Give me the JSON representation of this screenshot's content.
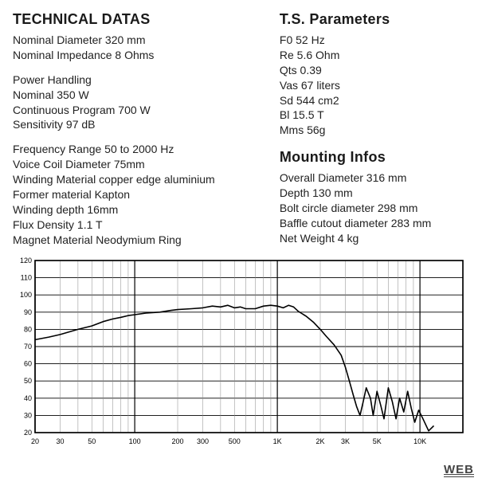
{
  "technical": {
    "heading": "TECHNICAL DATAS",
    "group1": [
      "Nominal Diameter 320 mm",
      "Nominal Impedance  8 Ohms"
    ],
    "group2": [
      "Power Handling",
      "Nominal 350 W",
      "Continuous Program 700 W",
      "Sensitivity 97 dB"
    ],
    "group3": [
      "Frequency Range 50 to 2000 Hz",
      "Voice Coil Diameter  75mm",
      "Winding Material copper edge aluminium",
      "Former material  Kapton",
      "Winding depth  16mm",
      "Flux Density  1.1 T",
      "Magnet Material  Neodymium Ring"
    ]
  },
  "ts": {
    "heading": "T.S. Parameters",
    "lines": [
      "F0 52 Hz",
      "Re 5.6 Ohm",
      "Qts 0.39",
      "Vas 67 liters",
      "Sd 544 cm2",
      "Bl 15.5 T",
      "Mms 56g"
    ]
  },
  "mounting": {
    "heading": "Mounting Infos",
    "lines": [
      "Overall Diameter  316 mm",
      "Depth 130 mm",
      "Bolt circle diameter 298 mm",
      "Baffle cutout diameter 283 mm",
      "Net Weight 4 kg"
    ]
  },
  "watermark": "WEB",
  "chart": {
    "type": "line",
    "background_color": "#ffffff",
    "grid_major_color": "#000000",
    "grid_minor_color": "#888888",
    "line_color": "#000000",
    "line_width": 1.6,
    "axis_font_size": 9,
    "x_label_hz": [
      20,
      30,
      50,
      100,
      200,
      300,
      500,
      "1K",
      "2K",
      "3K",
      "5K",
      "10K"
    ],
    "x_major_hz": [
      20,
      100,
      1000,
      10000
    ],
    "x_minor_hz": [
      30,
      40,
      50,
      60,
      70,
      80,
      90,
      200,
      300,
      400,
      500,
      600,
      700,
      800,
      900,
      2000,
      3000,
      4000,
      5000,
      6000,
      7000,
      8000,
      9000,
      20000
    ],
    "y_min": 20,
    "y_max": 120,
    "y_ticks": [
      20,
      30,
      40,
      50,
      60,
      70,
      80,
      90,
      100,
      110,
      120
    ],
    "data_points": [
      [
        20,
        74
      ],
      [
        25,
        75.5
      ],
      [
        30,
        77
      ],
      [
        40,
        80
      ],
      [
        50,
        82
      ],
      [
        60,
        84.5
      ],
      [
        70,
        86
      ],
      [
        80,
        87
      ],
      [
        90,
        88
      ],
      [
        100,
        88.5
      ],
      [
        120,
        89.5
      ],
      [
        150,
        90
      ],
      [
        180,
        91
      ],
      [
        200,
        91.5
      ],
      [
        250,
        92
      ],
      [
        300,
        92.5
      ],
      [
        350,
        93.5
      ],
      [
        400,
        93
      ],
      [
        450,
        94
      ],
      [
        500,
        92.5
      ],
      [
        550,
        93
      ],
      [
        600,
        92
      ],
      [
        700,
        92
      ],
      [
        800,
        93.5
      ],
      [
        900,
        94
      ],
      [
        1000,
        93.5
      ],
      [
        1100,
        92.5
      ],
      [
        1200,
        94
      ],
      [
        1300,
        93
      ],
      [
        1400,
        90.5
      ],
      [
        1500,
        89
      ],
      [
        1600,
        87.5
      ],
      [
        1800,
        84
      ],
      [
        2000,
        80
      ],
      [
        2200,
        76
      ],
      [
        2500,
        71
      ],
      [
        2800,
        65
      ],
      [
        3000,
        58
      ],
      [
        3200,
        50
      ],
      [
        3400,
        42
      ],
      [
        3600,
        35
      ],
      [
        3800,
        30
      ],
      [
        4000,
        38
      ],
      [
        4200,
        46
      ],
      [
        4500,
        40
      ],
      [
        4700,
        30
      ],
      [
        5000,
        44
      ],
      [
        5300,
        36
      ],
      [
        5600,
        28
      ],
      [
        6000,
        46
      ],
      [
        6400,
        38
      ],
      [
        6800,
        28
      ],
      [
        7200,
        40
      ],
      [
        7700,
        32
      ],
      [
        8200,
        44
      ],
      [
        8700,
        34
      ],
      [
        9200,
        26
      ],
      [
        9800,
        33
      ],
      [
        10500,
        28
      ],
      [
        11500,
        21
      ],
      [
        12500,
        24
      ]
    ]
  }
}
